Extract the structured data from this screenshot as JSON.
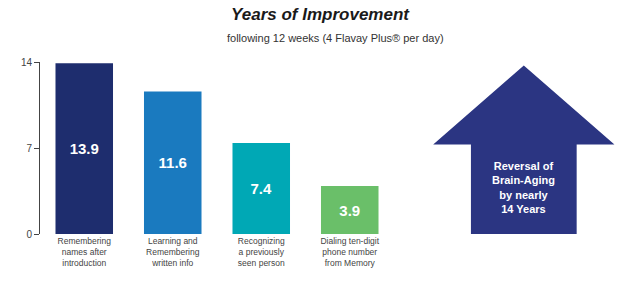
{
  "chart_data": {
    "type": "bar",
    "title": "Years of Improvement",
    "subtitle": "following 12 weeks (4 Flavay Plus® per day)",
    "categories": [
      "Remembering\nnames after\nintroduction",
      "Learning and\nRemembering\nwritten info",
      "Recognizing\na previously\nseen person",
      "Dialing ten-digit\nphone number\nfrom Memory"
    ],
    "values": [
      13.9,
      11.6,
      7.4,
      3.9
    ],
    "colors": [
      "#1e2d6e",
      "#1a7abf",
      "#00a8b5",
      "#6abf69"
    ],
    "ylim": [
      0,
      14
    ],
    "yticks": [
      0,
      7,
      14
    ],
    "data_labels": true,
    "grid": false,
    "annotations": [
      "Reversal of\nBrain-Aging\nby nearly\n14 Years"
    ]
  }
}
